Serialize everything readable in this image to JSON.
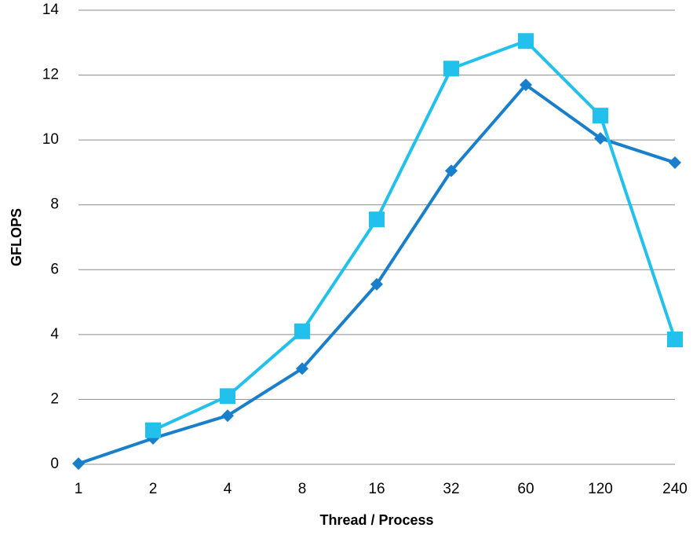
{
  "chart_data": {
    "type": "line",
    "x_label": "Thread / Process",
    "y_label": "GFLOPS",
    "categories": [
      "1",
      "2",
      "4",
      "8",
      "16",
      "32",
      "60",
      "120",
      "240"
    ],
    "series": [
      {
        "color": "#1a7fcb",
        "marker": "diamond",
        "values": [
          0.02,
          0.8,
          1.5,
          2.95,
          5.55,
          9.05,
          11.7,
          10.05,
          9.3
        ]
      },
      {
        "color": "#22c0ec",
        "marker": "square",
        "values": [
          null,
          1.05,
          2.1,
          4.1,
          7.55,
          12.2,
          13.05,
          10.75,
          3.85
        ]
      }
    ],
    "ylim": [
      0,
      14
    ],
    "yticks": [
      0,
      2,
      4,
      6,
      8,
      10,
      12,
      14
    ],
    "grid": true
  }
}
